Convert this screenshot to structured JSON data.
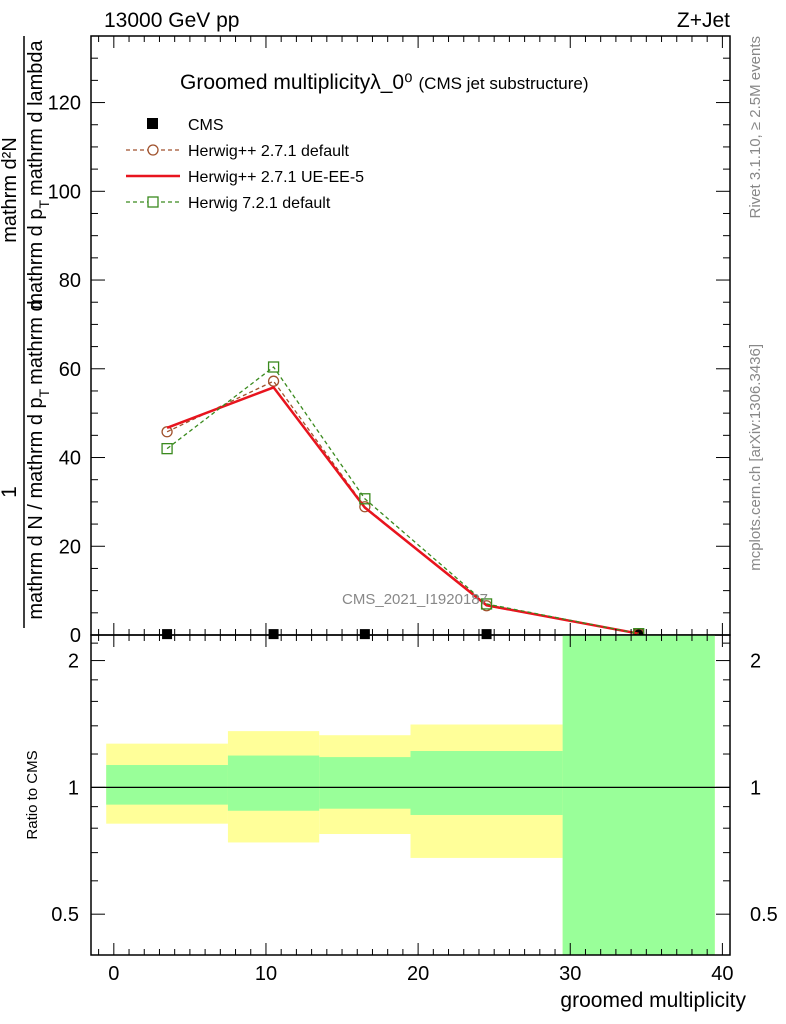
{
  "header": {
    "left": "13000 GeV pp",
    "right": "Z+Jet"
  },
  "side": {
    "rivet": "Rivet 3.1.10, ≥ 2.5M events",
    "mcplots": "mcplots.cern.ch [arXiv:1306.3436]"
  },
  "chart_data": {
    "type": "line",
    "title": "Groomed multiplicityλ_0⁰",
    "subtitle": "(CMS jet substructure)",
    "analysis_label": "CMS_2021_I1920187",
    "xlabel": "groomed multiplicity",
    "ylabel_main": {
      "numerator": "1",
      "denominator_line1": "mathrm d N / mathrm d p",
      "denominator_line1_sub": "T",
      "denominator_line2": "mathrm d",
      "num2": "mathrm d²N",
      "num2_line": "mathrm d p",
      "num2_sub": "T",
      "num2_tail": "mathrm d lambda"
    },
    "ylabel_main_full": "1 / mathrm d N / mathrm d p_T mathrm d²N / mathrm d p_T mathrm d lambda",
    "ylabel_ratio": "Ratio to CMS",
    "xlim": [
      -1.5,
      40.5
    ],
    "ylim_main": [
      0,
      135
    ],
    "ylim_ratio_log": [
      0.4,
      2.3
    ],
    "x_ticks": [
      0,
      10,
      20,
      30,
      40
    ],
    "y_ticks_main": [
      0,
      20,
      40,
      60,
      80,
      100,
      120
    ],
    "y_ticks_ratio": [
      0.5,
      1,
      2
    ],
    "bins": [
      {
        "lo": -0.5,
        "hi": 7.5,
        "center": 3.5
      },
      {
        "lo": 7.5,
        "hi": 13.5,
        "center": 10.5
      },
      {
        "lo": 13.5,
        "hi": 19.5,
        "center": 16.5
      },
      {
        "lo": 19.5,
        "hi": 29.5,
        "center": 24.5
      },
      {
        "lo": 29.5,
        "hi": 39.5,
        "center": 34.5
      }
    ],
    "series": [
      {
        "name": "CMS",
        "style": "data",
        "color": "#000000",
        "x": [
          3.5,
          10.5,
          16.5,
          24.5,
          34.5
        ],
        "y": [
          0.2,
          0.2,
          0.2,
          0.2,
          0.2
        ]
      },
      {
        "name": "Herwig++ 2.7.1 default",
        "style": "dashed-circle",
        "color": "#a0522d",
        "x": [
          3.5,
          10.5,
          16.5,
          24.5,
          34.5
        ],
        "y": [
          45.8,
          57.2,
          28.9,
          6.6,
          0.3
        ]
      },
      {
        "name": "Herwig++ 2.7.1 UE-EE-5",
        "style": "solid",
        "color": "#e8141e",
        "x": [
          3.5,
          10.5,
          16.5,
          24.5,
          34.5
        ],
        "y": [
          46.7,
          55.8,
          28.7,
          6.7,
          0.3
        ]
      },
      {
        "name": "Herwig 7.2.1 default",
        "style": "dashed-square",
        "color": "#3a8a1e",
        "x": [
          3.5,
          10.5,
          16.5,
          24.5,
          34.5
        ],
        "y": [
          42.0,
          60.4,
          30.7,
          7.0,
          0.3
        ]
      }
    ],
    "ratio_bands": {
      "yellow": [
        {
          "lo": -0.5,
          "hi": 7.5,
          "down": 0.82,
          "up": 1.27
        },
        {
          "lo": 7.5,
          "hi": 13.5,
          "down": 0.74,
          "up": 1.36
        },
        {
          "lo": 13.5,
          "hi": 19.5,
          "down": 0.775,
          "up": 1.33
        },
        {
          "lo": 19.5,
          "hi": 29.5,
          "down": 0.68,
          "up": 1.41
        },
        {
          "lo": 29.5,
          "hi": 39.5,
          "down": 0.4,
          "up": 2.3
        }
      ],
      "green": [
        {
          "lo": -0.5,
          "hi": 7.5,
          "down": 0.91,
          "up": 1.13
        },
        {
          "lo": 7.5,
          "hi": 13.5,
          "down": 0.88,
          "up": 1.19
        },
        {
          "lo": 13.5,
          "hi": 19.5,
          "down": 0.89,
          "up": 1.18
        },
        {
          "lo": 19.5,
          "hi": 29.5,
          "down": 0.86,
          "up": 1.22
        },
        {
          "lo": 29.5,
          "hi": 39.5,
          "down": 0.4,
          "up": 2.3
        }
      ],
      "yellow_color": "#ffff99",
      "green_color": "#99ff99"
    }
  }
}
